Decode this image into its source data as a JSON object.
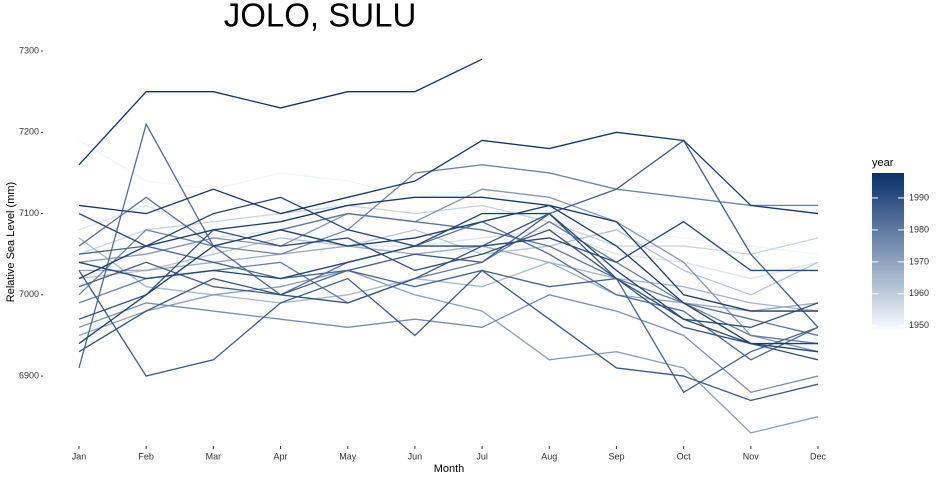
{
  "chart_data": {
    "type": "line",
    "title": "JOLO, SULU",
    "x_label": "Month",
    "y_label": "Relative Sea Level (mm)",
    "categories": [
      "Jan",
      "Feb",
      "Mar",
      "Apr",
      "May",
      "Jun",
      "Jul",
      "Aug",
      "Sep",
      "Oct",
      "Nov",
      "Dec"
    ],
    "ylim": [
      6825,
      7305
    ],
    "yticks": [
      6900,
      7000,
      7100,
      7200,
      7300
    ],
    "grid": false,
    "legend": {
      "title": "year",
      "position": "right",
      "lim": [
        1948.7,
        1997.8
      ],
      "ticks": [
        1950,
        1960,
        1970,
        1980,
        1990
      ],
      "low_color": "#f7fbff",
      "high_color": "#08306b"
    },
    "series": [
      {
        "year": 1950,
        "values": [
          7190,
          7140,
          7130,
          7150,
          7140,
          7120,
          7130,
          7100,
          7080,
          7070,
          7060,
          7050
        ]
      },
      {
        "year": 1954,
        "values": [
          7080,
          7110,
          7070,
          7080,
          7060,
          7060,
          7070,
          7080,
          7050,
          7040,
          7020,
          7040
        ]
      },
      {
        "year": 1958,
        "values": [
          7050,
          7080,
          7090,
          7100,
          7110,
          7100,
          7110,
          7090,
          7060,
          7060,
          7050,
          7070
        ]
      },
      {
        "year": 1962,
        "values": [
          7020,
          7030,
          7050,
          7070,
          7060,
          7080,
          7050,
          7060,
          7080,
          7030,
          7000,
          7040
        ]
      },
      {
        "year": 1965,
        "values": [
          7070,
          7010,
          7000,
          6990,
          7000,
          7020,
          7010,
          7040,
          7020,
          7010,
          6990,
          6980
        ]
      },
      {
        "year": 1968,
        "values": [
          7030,
          7030,
          7040,
          7050,
          7060,
          7050,
          7060,
          7040,
          7000,
          6990,
          6980,
          6990
        ]
      },
      {
        "year": 1971,
        "values": [
          6950,
          6980,
          7000,
          7010,
          7030,
          7000,
          6980,
          6920,
          6930,
          6910,
          6830,
          6850
        ]
      },
      {
        "year": 1973,
        "values": [
          7040,
          7050,
          7070,
          7060,
          7100,
          7090,
          7130,
          7120,
          7090,
          7040,
          6950,
          6930
        ]
      },
      {
        "year": 1975,
        "values": [
          6960,
          6990,
          6980,
          6970,
          6960,
          6970,
          6960,
          7000,
          6980,
          6950,
          6880,
          6900
        ]
      },
      {
        "year": 1977,
        "values": [
          7000,
          7080,
          7060,
          7050,
          7080,
          7150,
          7160,
          7150,
          7130,
          7120,
          7110,
          7110
        ]
      },
      {
        "year": 1979,
        "values": [
          6990,
          7020,
          7030,
          7040,
          6990,
          7020,
          7040,
          7090,
          7040,
          6990,
          6950,
          6940
        ]
      },
      {
        "year": 1981,
        "values": [
          7060,
          7120,
          7060,
          7080,
          7100,
          7090,
          7080,
          7060,
          7020,
          6990,
          6970,
          6950
        ]
      },
      {
        "year": 1983,
        "values": [
          6910,
          7210,
          7060,
          7000,
          7040,
          7060,
          7090,
          7050,
          7000,
          6980,
          6920,
          6960
        ]
      },
      {
        "year": 1985,
        "values": [
          7050,
          7060,
          7040,
          7020,
          7030,
          7010,
          7030,
          7010,
          7020,
          6880,
          6930,
          6960
        ]
      },
      {
        "year": 1987,
        "values": [
          7010,
          7040,
          7010,
          7000,
          7030,
          7050,
          7040,
          7100,
          7130,
          7190,
          7050,
          6960
        ]
      },
      {
        "year": 1988,
        "values": [
          7030,
          6900,
          6920,
          6990,
          7020,
          6950,
          7030,
          6970,
          6910,
          6900,
          6870,
          6890
        ]
      },
      {
        "year": 1989,
        "values": [
          6930,
          6980,
          7020,
          7000,
          6990,
          7020,
          7060,
          7100,
          7020,
          6960,
          6940,
          6920
        ]
      },
      {
        "year": 1990,
        "values": [
          6970,
          7000,
          7080,
          7060,
          7070,
          7030,
          7050,
          7080,
          7020,
          6970,
          6960,
          6990
        ]
      },
      {
        "year": 1992,
        "values": [
          7040,
          7020,
          7030,
          7020,
          7040,
          7060,
          7060,
          7070,
          7040,
          7090,
          7030,
          7030
        ]
      },
      {
        "year": 1993,
        "values": [
          7100,
          7060,
          7100,
          7120,
          7080,
          7060,
          7100,
          7100,
          7030,
          6970,
          6940,
          6930
        ]
      },
      {
        "year": 1994,
        "values": [
          6940,
          7000,
          7060,
          7080,
          7060,
          7070,
          7090,
          7110,
          7060,
          6990,
          6940,
          6940
        ]
      },
      {
        "year": 1995,
        "values": [
          7020,
          7060,
          7080,
          7090,
          7110,
          7120,
          7120,
          7110,
          7090,
          7000,
          6980,
          6980
        ]
      },
      {
        "year": 1996,
        "values": [
          7110,
          7100,
          7130,
          7100,
          7120,
          7140,
          7190,
          7180,
          7200,
          7190,
          7110,
          7100
        ]
      },
      {
        "year": 1997,
        "values": [
          7160,
          7250,
          7250,
          7230,
          7250,
          7250,
          7290,
          null,
          null,
          null,
          null,
          null
        ]
      }
    ]
  }
}
